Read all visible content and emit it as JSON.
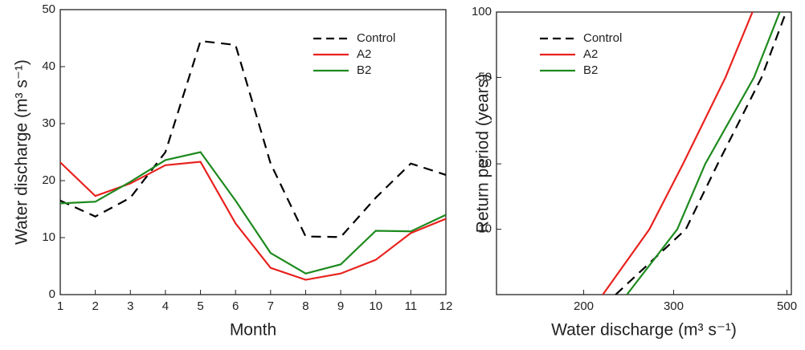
{
  "chart_data": [
    {
      "type": "line",
      "x_label": "Month",
      "y_label": "Water discharge (m³ s⁻¹)",
      "x": [
        1,
        2,
        3,
        4,
        5,
        6,
        7,
        8,
        9,
        10,
        11,
        12
      ],
      "xlim": [
        1,
        12
      ],
      "xticks": [
        1,
        2,
        3,
        4,
        5,
        6,
        7,
        8,
        9,
        10,
        11,
        12
      ],
      "ylim": [
        0,
        50
      ],
      "yticks": [
        0,
        10,
        20,
        30,
        40,
        50
      ],
      "series": [
        {
          "name": "Control",
          "color": "#000000",
          "dash": "dashed",
          "values": [
            16.5,
            13.7,
            17,
            25,
            44.5,
            43.8,
            23,
            10.2,
            10.1,
            17,
            23,
            21
          ]
        },
        {
          "name": "A2",
          "color": "#e8221e",
          "values": [
            23.2,
            17.3,
            19.5,
            22.7,
            23.3,
            12.5,
            4.7,
            2.6,
            3.7,
            6.1,
            10.8,
            13.3
          ]
        },
        {
          "name": "B2",
          "color": "#1e8a1e",
          "values": [
            16,
            16.3,
            19.8,
            23.6,
            25,
            16.5,
            7.3,
            3.7,
            5.3,
            11.2,
            11.1,
            14
          ]
        }
      ]
    },
    {
      "type": "line",
      "x_label": "Water discharge (m³ s⁻¹)",
      "y_label": "Return period (years)",
      "xlog": true,
      "ylog": true,
      "xlim": [
        135,
        510
      ],
      "xticks": [
        200,
        300,
        500
      ],
      "ylim": [
        5,
        100
      ],
      "yticks": [
        10,
        20,
        50,
        100
      ],
      "series": [
        {
          "name": "Control",
          "color": "#000000",
          "dash": "dashed",
          "x": [
            231,
            317,
            366,
            446,
            498
          ],
          "values": [
            5,
            10,
            20,
            50,
            100
          ]
        },
        {
          "name": "A2",
          "color": "#e8221e",
          "x": [
            218,
            269,
            313,
            379,
            428
          ],
          "values": [
            5,
            10,
            20,
            50,
            100
          ]
        },
        {
          "name": "B2",
          "color": "#1e8a1e",
          "x": [
            243,
            305,
            346,
            431,
            484
          ],
          "values": [
            5,
            10,
            20,
            50,
            100
          ]
        }
      ]
    }
  ]
}
